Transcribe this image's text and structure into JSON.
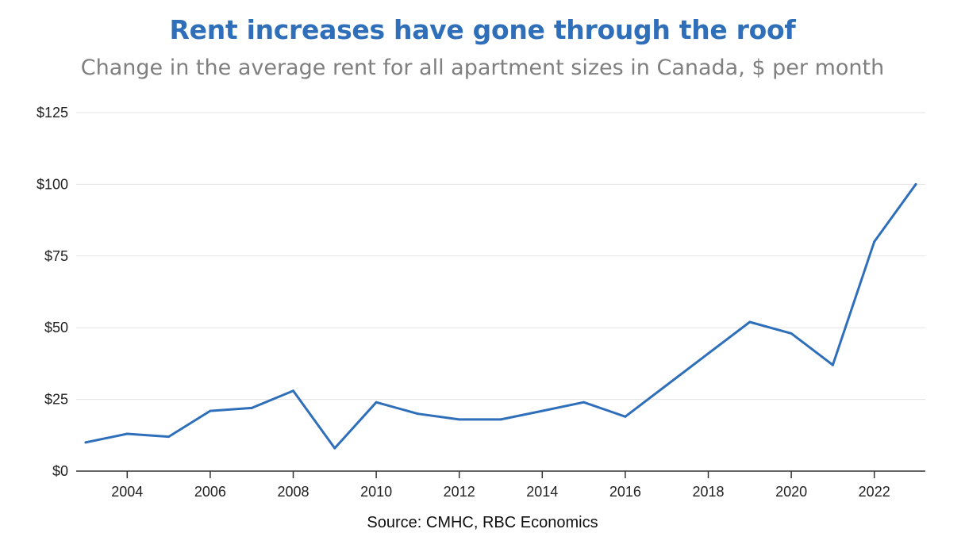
{
  "chart_data": {
    "type": "line",
    "title": "Rent increases have gone through the roof",
    "subtitle": "Change in the average rent for all apartment sizes in Canada, $ per month",
    "source": "Source: CMHC, RBC Economics",
    "xlabel": "",
    "ylabel": "",
    "x": [
      2003,
      2004,
      2005,
      2006,
      2007,
      2008,
      2009,
      2010,
      2011,
      2012,
      2013,
      2014,
      2015,
      2016,
      2017,
      2018,
      2019,
      2020,
      2021,
      2022,
      2023
    ],
    "series": [
      {
        "name": "Change in average rent",
        "color": "#2f6fba",
        "values": [
          10,
          13,
          12,
          21,
          22,
          28,
          8,
          24,
          20,
          18,
          18,
          21,
          24,
          19,
          30,
          41,
          52,
          48,
          37,
          80,
          100
        ]
      }
    ],
    "xlim": [
      2003,
      2023
    ],
    "ylim": [
      0,
      125
    ],
    "x_ticks": [
      2004,
      2006,
      2008,
      2010,
      2012,
      2014,
      2016,
      2018,
      2020,
      2022
    ],
    "x_tick_labels": [
      "2004",
      "2006",
      "2008",
      "2010",
      "2012",
      "2014",
      "2016",
      "2018",
      "2020",
      "2022"
    ],
    "y_ticks": [
      0,
      25,
      50,
      75,
      100,
      125
    ],
    "y_tick_labels": [
      "$0",
      "$25",
      "$50",
      "$75",
      "$100",
      "$125"
    ],
    "grid": true,
    "legend": "none"
  }
}
